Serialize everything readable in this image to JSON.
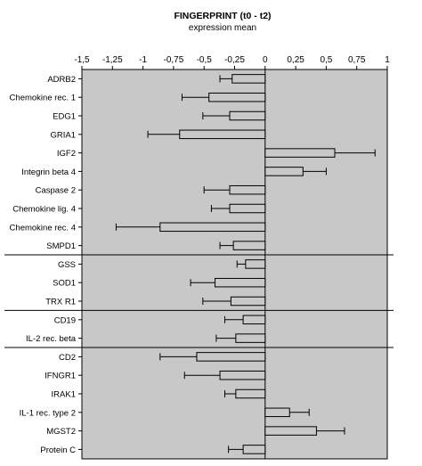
{
  "chart_data": {
    "type": "bar",
    "orientation": "horizontal",
    "title": "FINGERPRINT (t0 - t2)",
    "subtitle": "expression mean",
    "xlim": [
      -1.5,
      1
    ],
    "x_ticks": [
      "-1,5",
      "-1,25",
      "-1",
      "-0,75",
      "-0,5",
      "-0,25",
      "0",
      "0,25",
      "0,5",
      "0,75",
      "1"
    ],
    "x_tick_values": [
      -1.5,
      -1.25,
      -1,
      -0.75,
      -0.5,
      -0.25,
      0,
      0.25,
      0.5,
      0.75,
      1
    ],
    "grid": false,
    "error_bars": true,
    "colors": {
      "plot_bg": "#c8c8c8",
      "bar_fill": "#c8c8c8",
      "stroke": "#000000"
    },
    "groups": [
      {
        "categories": [
          "ADRB2",
          "Chemokine rec. 1",
          "EDG1",
          "GRIA1",
          "IGF2",
          "Integrin beta 4",
          "Caspase 2",
          "Chemokine lig. 4",
          "Chemokine rec. 4",
          "SMPD1"
        ],
        "values": [
          -0.27,
          -0.46,
          -0.29,
          -0.7,
          0.57,
          0.31,
          -0.29,
          -0.29,
          -0.86,
          -0.26
        ],
        "errors": [
          0.1,
          0.22,
          0.22,
          0.26,
          0.33,
          0.19,
          0.21,
          0.15,
          0.36,
          0.11
        ]
      },
      {
        "categories": [
          "GSS",
          "SOD1",
          "TRX R1"
        ],
        "values": [
          -0.16,
          -0.41,
          -0.28
        ],
        "errors": [
          0.07,
          0.2,
          0.23
        ]
      },
      {
        "categories": [
          "CD19",
          "IL-2 rec. beta"
        ],
        "values": [
          -0.18,
          -0.24
        ],
        "errors": [
          0.15,
          0.16
        ]
      },
      {
        "categories": [
          "CD2",
          "IFNGR1",
          "IRAK1",
          "IL-1 rec. type 2",
          "MGST2",
          "Protein C"
        ],
        "values": [
          -0.56,
          -0.37,
          -0.24,
          0.2,
          0.42,
          -0.18
        ],
        "errors": [
          0.3,
          0.29,
          0.09,
          0.16,
          0.23,
          0.12
        ]
      }
    ]
  }
}
